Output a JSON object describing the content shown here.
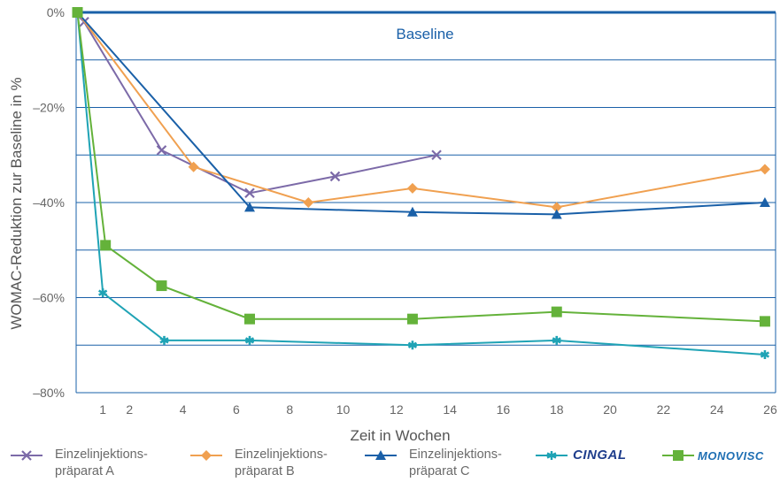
{
  "chart_data": {
    "type": "line",
    "title": "",
    "xlabel": "Zeit in Wochen",
    "ylabel": "WOMAC-Reduktion zur Baseline in %",
    "baseline_label": "Baseline",
    "xlim": [
      0,
      26.2
    ],
    "ylim": [
      -80,
      0
    ],
    "x_ticks": [
      1,
      2,
      4,
      6,
      8,
      10,
      12,
      14,
      16,
      18,
      20,
      22,
      24,
      26
    ],
    "y_ticks": [
      {
        "value": 0,
        "label": "0%"
      },
      {
        "value": -20,
        "label": "–20%"
      },
      {
        "value": -40,
        "label": "–40%"
      },
      {
        "value": -60,
        "label": "–60%"
      },
      {
        "value": -80,
        "label": "–80%"
      }
    ],
    "grid": true,
    "legend_position": "bottom",
    "series": [
      {
        "name": "Einzelinjektions-präparat A",
        "color": "#7c6aa8",
        "marker": "x",
        "x": [
          0.05,
          0.3,
          3.2,
          6.5,
          9.7,
          13.5
        ],
        "y": [
          0,
          -2,
          -29,
          -38,
          -34.5,
          -30
        ]
      },
      {
        "name": "Einzelinjektions-präparat B",
        "color": "#f0a050",
        "marker": "diamond",
        "x": [
          0.05,
          4.4,
          8.7,
          12.6,
          18,
          25.8
        ],
        "y": [
          0,
          -32.5,
          -40,
          -37,
          -41,
          -33
        ]
      },
      {
        "name": "Einzelinjektions-präparat C",
        "color": "#1a60a8",
        "marker": "triangle",
        "x": [
          0.05,
          6.5,
          12.6,
          18,
          25.8
        ],
        "y": [
          0,
          -41,
          -42,
          -42.5,
          -40
        ]
      },
      {
        "name": "CINGAL",
        "color": "#1fa3b5",
        "marker": "star",
        "x": [
          0.05,
          1,
          3.3,
          6.5,
          12.6,
          18,
          25.8
        ],
        "y": [
          0,
          -59,
          -69,
          -69,
          -70,
          -69,
          -72
        ]
      },
      {
        "name": "MONOVISC",
        "color": "#64b23a",
        "marker": "square",
        "x": [
          0.05,
          1.1,
          3.2,
          6.5,
          12.6,
          18,
          25.8
        ],
        "y": [
          0,
          -49,
          -57.5,
          -64.5,
          -64.5,
          -63,
          -65
        ]
      }
    ]
  },
  "legend": {
    "a": {
      "line1": "Einzelinjektions-",
      "line2": "präparat A"
    },
    "b": {
      "line1": "Einzelinjektions-",
      "line2": "präparat B"
    },
    "c": {
      "line1": "Einzelinjektions-",
      "line2": "präparat C"
    },
    "cingal": {
      "brand": "CINGAL",
      "color": "#1f3e8c"
    },
    "monovisc": {
      "brand": "MONOVISC",
      "color": "#1f6fb3"
    }
  }
}
